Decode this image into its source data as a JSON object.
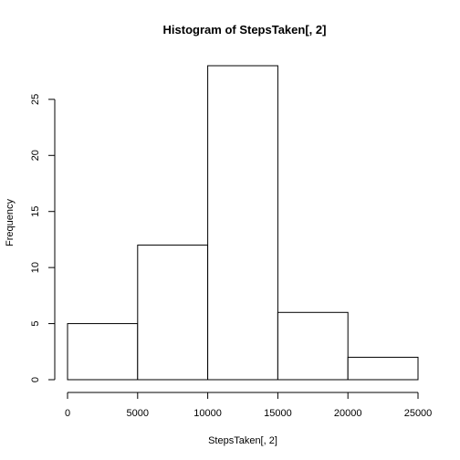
{
  "chart_data": {
    "type": "bar",
    "title": "Histogram of StepsTaken[, 2]",
    "xlabel": "StepsTaken[, 2]",
    "ylabel": "Frequency",
    "bins": [
      {
        "from": 0,
        "to": 5000,
        "count": 5
      },
      {
        "from": 5000,
        "to": 10000,
        "count": 12
      },
      {
        "from": 10000,
        "to": 15000,
        "count": 28
      },
      {
        "from": 15000,
        "to": 20000,
        "count": 6
      },
      {
        "from": 20000,
        "to": 25000,
        "count": 2
      }
    ],
    "xticks": [
      0,
      5000,
      10000,
      15000,
      20000,
      25000
    ],
    "yticks": [
      0,
      5,
      10,
      15,
      20,
      25
    ],
    "xlim": [
      0,
      25000
    ],
    "ylim": [
      0,
      28
    ],
    "grid": false,
    "bar_fill": "#ffffff",
    "bar_stroke": "#000000"
  }
}
